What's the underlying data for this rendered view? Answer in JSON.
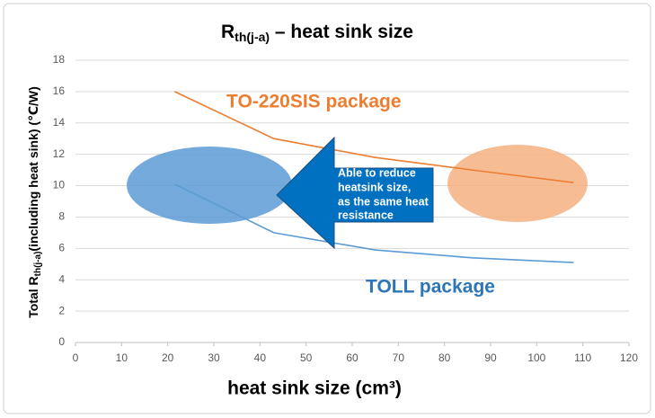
{
  "chart_data": {
    "type": "line",
    "title": {
      "main": "R",
      "sub": "th(j-a)",
      "rest": " – heat sink size"
    },
    "x_label": "heat sink size  (cm³)",
    "y_label": {
      "main": "Total R",
      "sub": "th(j-a)",
      "rest": "(including heat sink)   (℃/W)"
    },
    "series": [
      {
        "name": "TO-220SIS package",
        "color": "#ed7d31",
        "x": [
          21.5,
          43,
          65,
          86,
          108
        ],
        "values": [
          16,
          13,
          11.8,
          11,
          10.2
        ]
      },
      {
        "name": "TOLL package",
        "color": "#5b9bd5",
        "x": [
          21.5,
          43,
          65,
          86,
          108
        ],
        "values": [
          10.1,
          7,
          5.9,
          5.4,
          5.1
        ]
      }
    ],
    "annotation": [
      "Able to reduce",
      "heatsink size,",
      "as the same heat",
      "resistance"
    ],
    "xlim": [
      0,
      120
    ],
    "xticks": [
      0,
      10,
      20,
      30,
      40,
      50,
      60,
      70,
      80,
      90,
      100,
      110,
      120
    ],
    "ylim": [
      0,
      18
    ],
    "yticks": [
      0,
      2,
      4,
      6,
      8,
      10,
      12,
      14,
      16,
      18
    ],
    "grid": true
  }
}
